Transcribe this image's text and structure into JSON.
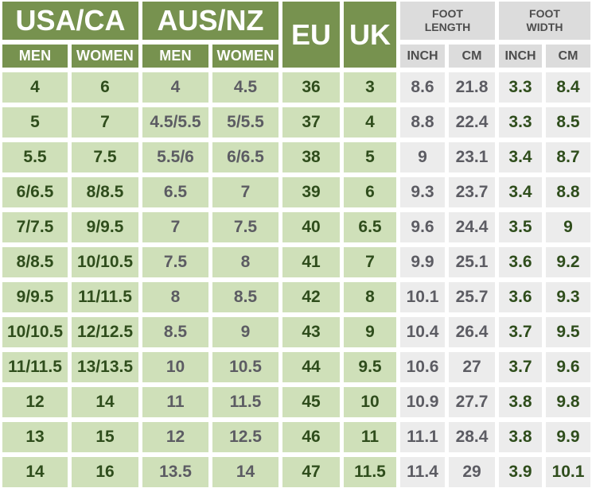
{
  "chart_data": {
    "type": "table",
    "header": {
      "usa_ca": "USA/CA",
      "aus_nz": "AUS/NZ",
      "eu": "EU",
      "uk": "UK",
      "foot_length": "FOOT\nLENGTH",
      "foot_width": "FOOT\nWIDTH",
      "men": "MEN",
      "women": "WOMEN",
      "inch": "INCH",
      "cm": "CM"
    },
    "columns": [
      "USA/CA MEN",
      "USA/CA WOMEN",
      "AUS/NZ MEN",
      "AUS/NZ WOMEN",
      "EU",
      "UK",
      "FOOT LENGTH INCH",
      "FOOT LENGTH CM",
      "FOOT WIDTH INCH",
      "FOOT WIDTH CM"
    ],
    "rows": [
      [
        "4",
        "6",
        "4",
        "4.5",
        "36",
        "3",
        "8.6",
        "21.8",
        "3.3",
        "8.4"
      ],
      [
        "5",
        "7",
        "4.5/5.5",
        "5/5.5",
        "37",
        "4",
        "8.8",
        "22.4",
        "3.3",
        "8.5"
      ],
      [
        "5.5",
        "7.5",
        "5.5/6",
        "6/6.5",
        "38",
        "5",
        "9",
        "23.1",
        "3.4",
        "8.7"
      ],
      [
        "6/6.5",
        "8/8.5",
        "6.5",
        "7",
        "39",
        "6",
        "9.3",
        "23.7",
        "3.4",
        "8.8"
      ],
      [
        "7/7.5",
        "9/9.5",
        "7",
        "7.5",
        "40",
        "6.5",
        "9.6",
        "24.4",
        "3.5",
        "9"
      ],
      [
        "8/8.5",
        "10/10.5",
        "7.5",
        "8",
        "41",
        "7",
        "9.9",
        "25.1",
        "3.6",
        "9.2"
      ],
      [
        "9/9.5",
        "11/11.5",
        "8",
        "8.5",
        "42",
        "8",
        "10.1",
        "25.7",
        "3.6",
        "9.3"
      ],
      [
        "10/10.5",
        "12/12.5",
        "8.5",
        "9",
        "43",
        "9",
        "10.4",
        "26.4",
        "3.7",
        "9.5"
      ],
      [
        "11/11.5",
        "13/13.5",
        "10",
        "10.5",
        "44",
        "9.5",
        "10.6",
        "27",
        "3.7",
        "9.6"
      ],
      [
        "12",
        "14",
        "11",
        "11.5",
        "45",
        "10",
        "10.9",
        "27.7",
        "3.8",
        "9.8"
      ],
      [
        "13",
        "15",
        "12",
        "12.5",
        "46",
        "11",
        "11.1",
        "28.4",
        "3.8",
        "9.9"
      ],
      [
        "14",
        "16",
        "13.5",
        "14",
        "47",
        "11.5",
        "11.4",
        "29",
        "3.9",
        "10.1"
      ]
    ]
  },
  "colors": {
    "header_green": "#77924f",
    "cell_green": "#cfe0b9",
    "header_gray": "#dcdcdc",
    "cell_gray": "#ececec",
    "text_green": "#2f4d1c",
    "text_gray": "#5c5c63",
    "header_text_gray": "#4d4d4d",
    "background": "#ffffff"
  }
}
